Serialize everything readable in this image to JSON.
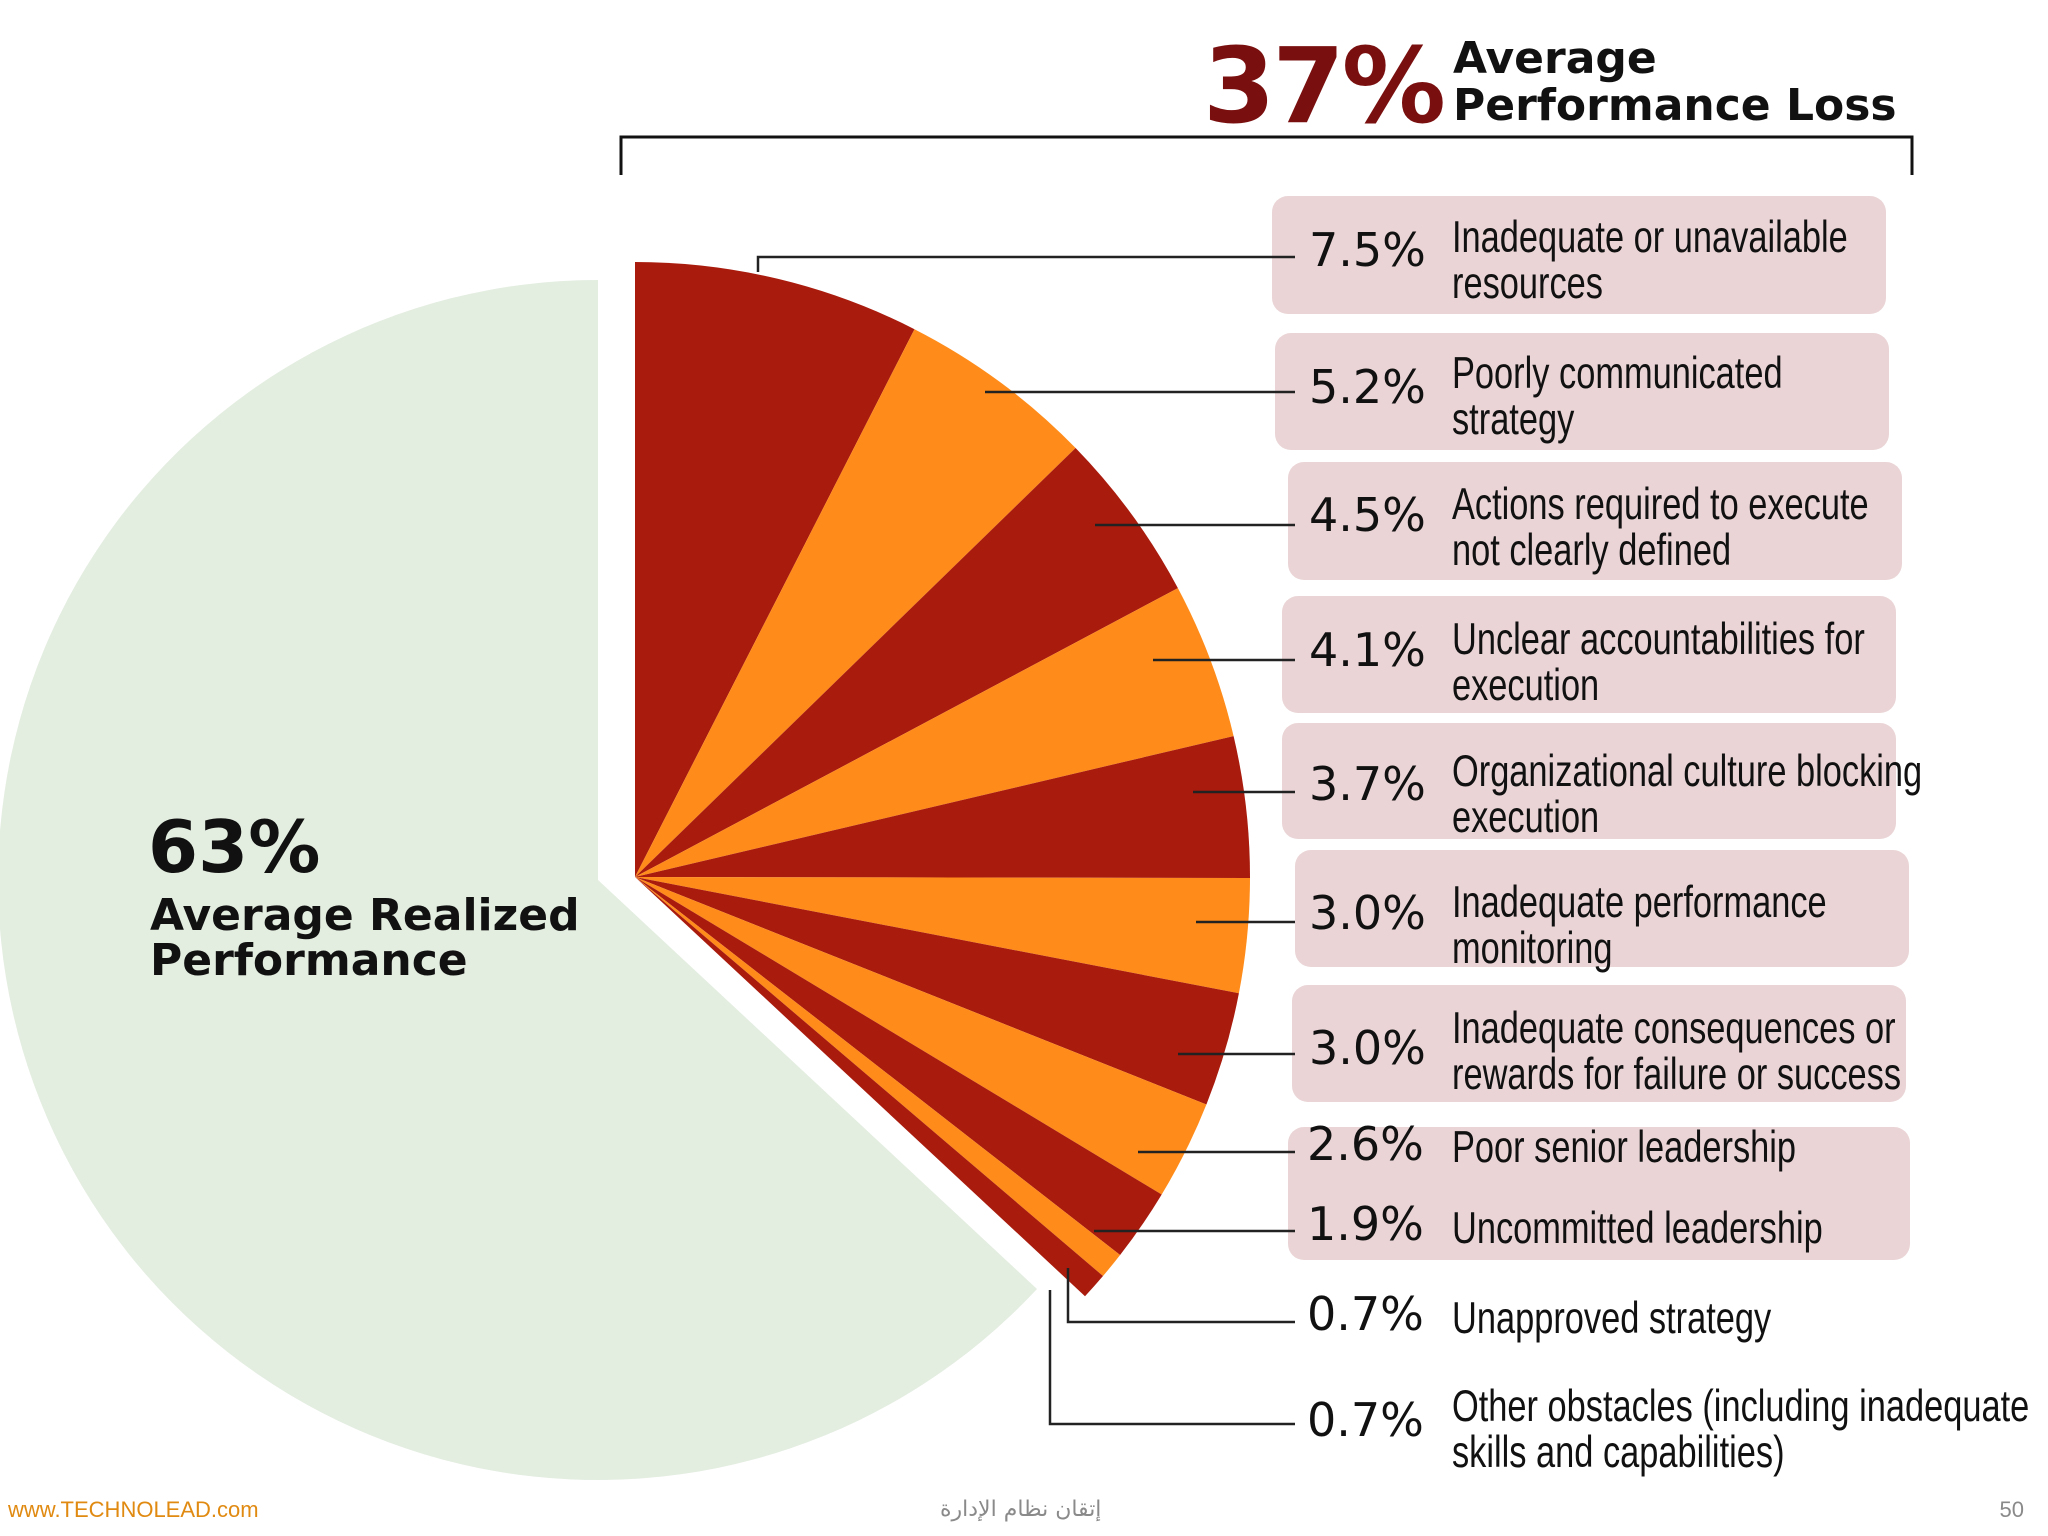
{
  "chart_data": {
    "type": "pie",
    "title": "37% Average Performance Loss",
    "header": {
      "percent": "37%",
      "line1": "Average",
      "line2": "Performance Loss"
    },
    "realized": {
      "value": 63,
      "percent": "63%",
      "line1": "Average Realized",
      "line2": "Performance"
    },
    "series": [
      {
        "value": 7.5,
        "pct": "7.5%",
        "lines": [
          "Inadequate or unavailable",
          "resources"
        ]
      },
      {
        "value": 5.2,
        "pct": "5.2%",
        "lines": [
          "Poorly communicated",
          "strategy"
        ]
      },
      {
        "value": 4.5,
        "pct": "4.5%",
        "lines": [
          "Actions required to execute",
          "not clearly defined"
        ]
      },
      {
        "value": 4.1,
        "pct": "4.1%",
        "lines": [
          "Unclear accountabilities for",
          "execution"
        ]
      },
      {
        "value": 3.7,
        "pct": "3.7%",
        "lines": [
          "Organizational culture blocking",
          "execution"
        ]
      },
      {
        "value": 3.0,
        "pct": "3.0%",
        "lines": [
          "Inadequate performance",
          "monitoring"
        ]
      },
      {
        "value": 3.0,
        "pct": "3.0%",
        "lines": [
          "Inadequate consequences or",
          "rewards for failure or success"
        ]
      },
      {
        "value": 2.6,
        "pct": "2.6%",
        "lines": [
          "Poor senior leadership"
        ]
      },
      {
        "value": 1.9,
        "pct": "1.9%",
        "lines": [
          "Uncommitted leadership"
        ]
      },
      {
        "value": 0.7,
        "pct": "0.7%",
        "lines": [
          "Unapproved strategy"
        ]
      },
      {
        "value": 0.7,
        "pct": "0.7%",
        "lines": [
          "Other obstacles (including inadequate",
          "skills and capabilities)"
        ]
      }
    ],
    "colors": {
      "dark": "#a91b0d",
      "light": "#ff8c1a",
      "realized": "#e3ede0",
      "label_box": "#ead4d6",
      "header": "#7a0f0f",
      "text": "#111111"
    }
  },
  "footer": {
    "left": "www.TECHNOLEAD.com",
    "center": "إتقان نظام الإدارة",
    "page": "50"
  }
}
